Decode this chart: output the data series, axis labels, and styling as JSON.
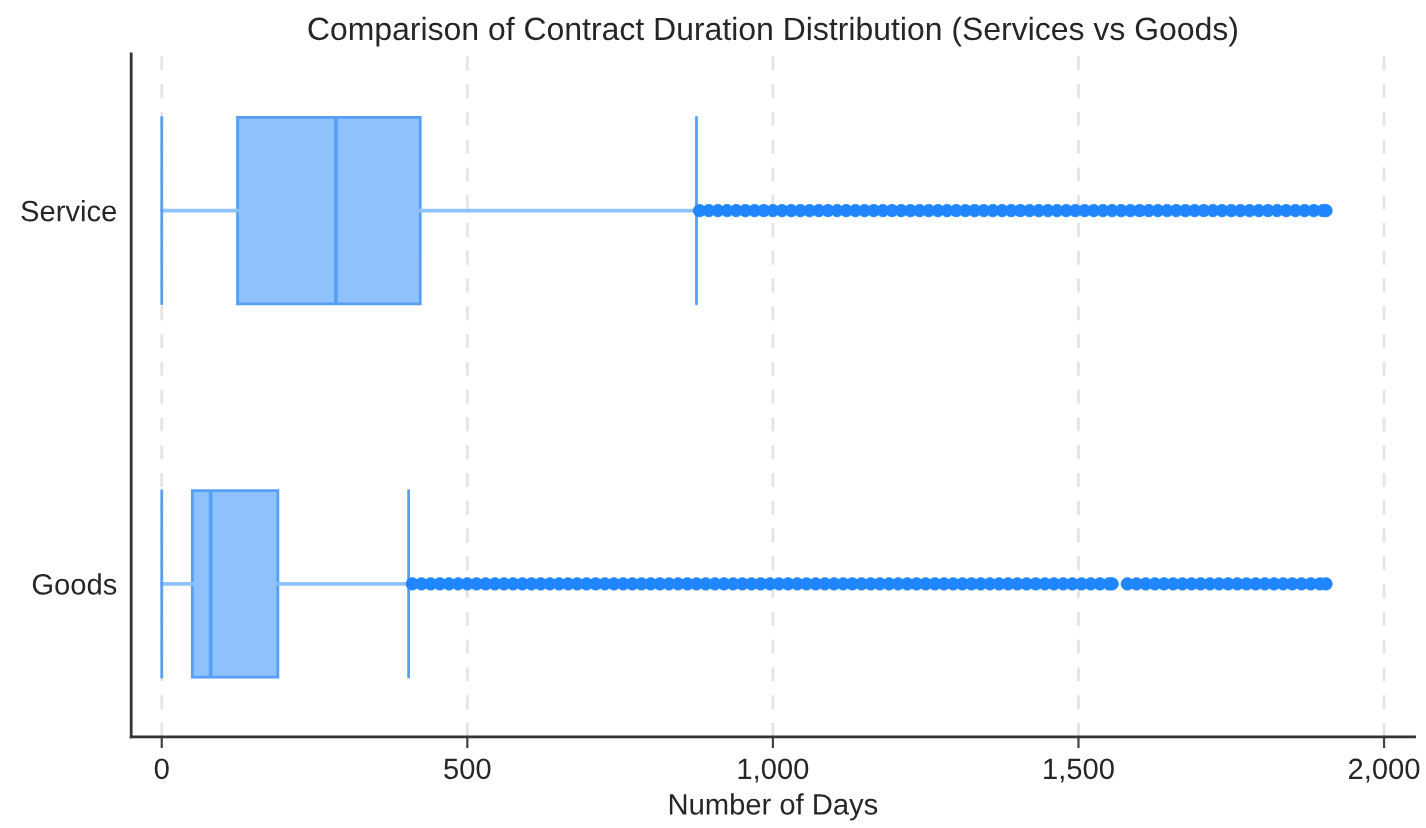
{
  "chart_data": {
    "type": "box",
    "orientation": "horizontal",
    "title": "Comparison of Contract Duration Distribution (Services vs Goods)",
    "xlabel": "Number of Days",
    "categories": [
      "Service",
      "Goods"
    ],
    "series": [
      {
        "color": "#8fc1fc",
        "boxes": [
          {
            "low": 0,
            "q1": 124,
            "median": 285,
            "q3": 423,
            "high": 875,
            "outliers": [
              880,
              895,
              910,
              925,
              940,
              955,
              970,
              985,
              1000,
              1015,
              1030,
              1045,
              1060,
              1075,
              1090,
              1105,
              1120,
              1135,
              1150,
              1165,
              1180,
              1195,
              1210,
              1225,
              1240,
              1255,
              1270,
              1285,
              1300,
              1315,
              1330,
              1345,
              1360,
              1375,
              1390,
              1405,
              1420,
              1435,
              1450,
              1465,
              1480,
              1495,
              1510,
              1525,
              1540,
              1555,
              1570,
              1585,
              1600,
              1615,
              1630,
              1645,
              1660,
              1675,
              1690,
              1705,
              1720,
              1735,
              1750,
              1765,
              1780,
              1795,
              1810,
              1825,
              1840,
              1855,
              1870,
              1885,
              1900,
              1905
            ]
          },
          {
            "low": 0,
            "q1": 50,
            "median": 80,
            "q3": 190,
            "high": 404,
            "outliers": [
              410,
              425,
              440,
              455,
              470,
              485,
              500,
              515,
              530,
              545,
              560,
              575,
              590,
              605,
              620,
              635,
              650,
              665,
              680,
              695,
              710,
              725,
              740,
              755,
              770,
              785,
              800,
              815,
              830,
              845,
              860,
              875,
              890,
              905,
              920,
              935,
              950,
              965,
              980,
              995,
              1010,
              1025,
              1040,
              1055,
              1070,
              1085,
              1100,
              1115,
              1130,
              1145,
              1160,
              1175,
              1190,
              1205,
              1220,
              1235,
              1250,
              1265,
              1280,
              1295,
              1310,
              1325,
              1340,
              1355,
              1370,
              1385,
              1400,
              1415,
              1430,
              1445,
              1460,
              1475,
              1490,
              1505,
              1520,
              1535,
              1550,
              1555,
              1580,
              1595,
              1610,
              1625,
              1640,
              1655,
              1670,
              1685,
              1700,
              1715,
              1730,
              1745,
              1760,
              1775,
              1790,
              1805,
              1820,
              1835,
              1850,
              1865,
              1880,
              1895,
              1905
            ]
          }
        ]
      }
    ],
    "xlim": [
      -50,
      2050
    ],
    "xticks": [
      0,
      500,
      {
        "value": 1000,
        "label": "1,000"
      },
      {
        "value": 1500,
        "label": "1,500"
      },
      {
        "value": 2000,
        "label": "2,000"
      }
    ],
    "grid": "x"
  }
}
